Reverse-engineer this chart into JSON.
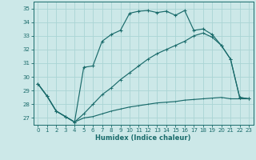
{
  "xlabel": "Humidex (Indice chaleur)",
  "bg_color": "#cce8e8",
  "grid_color": "#aad4d4",
  "line_color": "#1a6b6b",
  "xlim": [
    -0.5,
    23.5
  ],
  "ylim": [
    26.5,
    35.5
  ],
  "xticks": [
    0,
    1,
    2,
    3,
    4,
    5,
    6,
    7,
    8,
    9,
    10,
    11,
    12,
    13,
    14,
    15,
    16,
    17,
    18,
    19,
    20,
    21,
    22,
    23
  ],
  "yticks": [
    27,
    28,
    29,
    30,
    31,
    32,
    33,
    34,
    35
  ],
  "line1_x": [
    0,
    1,
    2,
    3,
    4,
    5,
    6,
    7,
    8,
    9,
    10,
    11,
    12,
    13,
    14,
    15,
    16,
    17,
    18,
    19,
    20,
    21,
    22,
    23
  ],
  "line1_y": [
    29.5,
    28.6,
    27.5,
    27.1,
    26.7,
    30.7,
    30.8,
    32.6,
    33.1,
    33.4,
    34.65,
    34.8,
    34.85,
    34.7,
    34.8,
    34.5,
    34.85,
    33.4,
    33.5,
    33.1,
    32.3,
    31.3,
    28.5,
    28.4
  ],
  "line2_x": [
    0,
    1,
    2,
    3,
    4,
    5,
    6,
    7,
    8,
    9,
    10,
    11,
    12,
    13,
    14,
    15,
    16,
    17,
    18,
    19,
    20,
    21,
    22,
    23
  ],
  "line2_y": [
    29.5,
    28.6,
    27.5,
    27.1,
    26.7,
    27.3,
    28.0,
    28.7,
    29.2,
    29.8,
    30.3,
    30.8,
    31.3,
    31.7,
    32.0,
    32.3,
    32.6,
    33.0,
    33.2,
    32.9,
    32.3,
    31.3,
    28.5,
    28.4
  ],
  "line3_x": [
    0,
    1,
    2,
    3,
    4,
    5,
    6,
    7,
    8,
    9,
    10,
    11,
    12,
    13,
    14,
    15,
    16,
    17,
    18,
    19,
    20,
    21,
    22,
    23
  ],
  "line3_y": [
    29.5,
    28.6,
    27.5,
    27.1,
    26.7,
    27.0,
    27.1,
    27.3,
    27.5,
    27.65,
    27.8,
    27.9,
    28.0,
    28.1,
    28.15,
    28.2,
    28.3,
    28.35,
    28.4,
    28.45,
    28.5,
    28.4,
    28.4,
    28.4
  ]
}
